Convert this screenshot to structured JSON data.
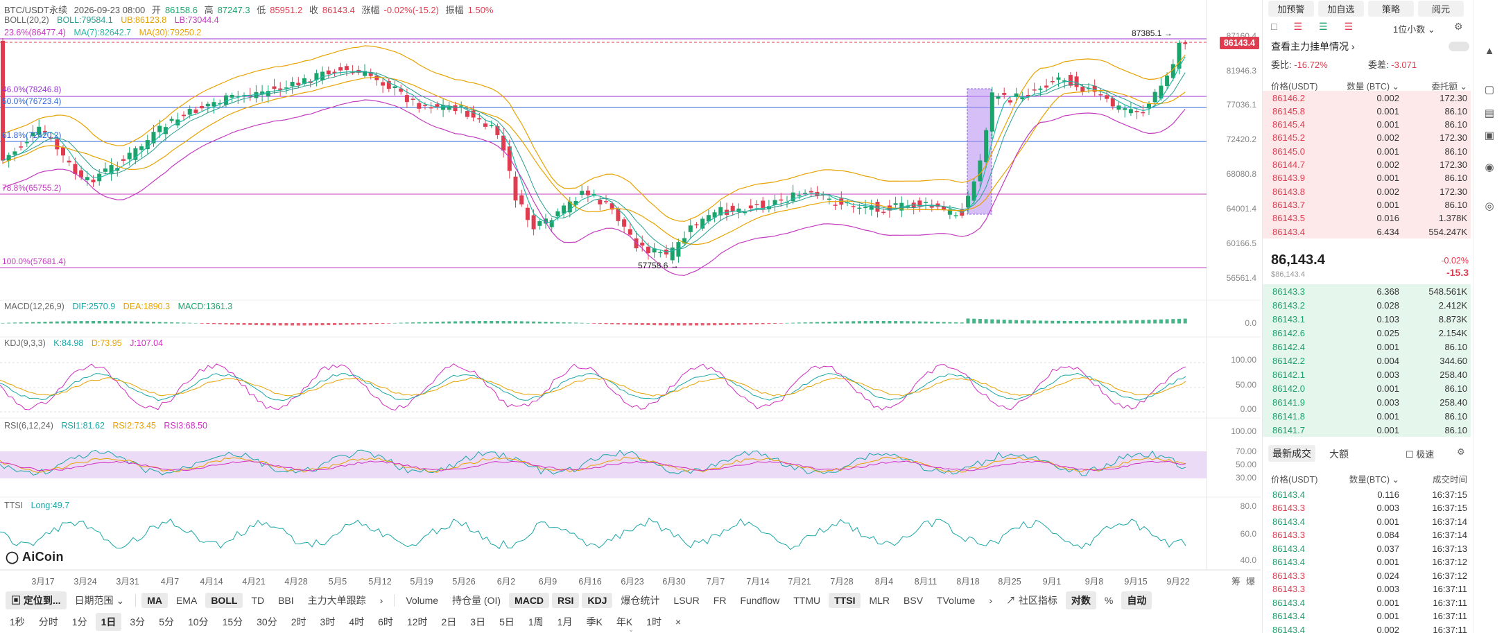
{
  "header": {
    "symbol": "BTC/USDT永续",
    "datetime": "2026-09-23 08:00",
    "open_label": "开",
    "open": "86158.6",
    "high_label": "高",
    "high": "87247.3",
    "low_label": "低",
    "low": "85951.2",
    "close_label": "收",
    "close": "86143.4",
    "change_label": "涨幅",
    "change": "-0.02%(-15.2)",
    "amp_label": "振幅",
    "amp": "1.50%"
  },
  "boll": {
    "name": "BOLL(20,2)",
    "boll": "BOLL:79584.1",
    "ub": "UB:86123.8",
    "lb": "LB:73044.4"
  },
  "ma": {
    "prefix": "23.6%(86477.4)",
    "ma7": "MA(7):82642.7",
    "ma30": "MA(30):79250.2"
  },
  "yaxis": [
    "87160.4",
    "81946.3",
    "77036.1",
    "72420.2",
    "68080.8",
    "64001.4",
    "60166.5",
    "56561.4"
  ],
  "last_price_tag": "86143.4",
  "high_marker": "87385.1 →",
  "low_marker": "57758.6 →",
  "fib": [
    {
      "label": "46.0%(78246.8)",
      "color": "#9b2fd6"
    },
    {
      "label": "50.0%(76723.4)",
      "color": "#2c66d8"
    },
    {
      "label": "61.8%(72420.2)",
      "color": "#2c66d8"
    },
    {
      "label": "78.8%(65755.2)",
      "color": "#c23bbf"
    },
    {
      "label": "100.0%(57681.4)",
      "color": "#c23bbf"
    }
  ],
  "macd": {
    "name": "MACD(12,26,9)",
    "dif": "DIF:2570.9",
    "dea": "DEA:1890.3",
    "macd": "MACD:1361.3",
    "axis": "0.0"
  },
  "kdj": {
    "name": "KDJ(9,3,3)",
    "k": "K:84.98",
    "d": "D:73.95",
    "j": "J:107.04",
    "axis": [
      "100.00",
      "50.00",
      "0.00"
    ]
  },
  "rsi": {
    "name": "RSI(6,12,24)",
    "rsi1": "RSI1:81.62",
    "rsi2": "RSI2:73.45",
    "rsi3": "RSI3:68.50",
    "axis": [
      "100.00",
      "70.00",
      "50.00",
      "30.00"
    ]
  },
  "ttsi": {
    "name": "TTSI",
    "long": "Long:49.7",
    "axis": [
      "80.0",
      "60.0",
      "40.0"
    ]
  },
  "logo": "AiCoin",
  "xaxis": [
    "3月17",
    "3月24",
    "3月31",
    "4月7",
    "4月14",
    "4月21",
    "4月28",
    "5月5",
    "5月12",
    "5月19",
    "5月26",
    "6月2",
    "6月9",
    "6月16",
    "6月23",
    "6月30",
    "7月7",
    "7月14",
    "7月21",
    "7月28",
    "8月4",
    "8月11",
    "8月18",
    "8月25",
    "9月1",
    "9月8",
    "9月15",
    "9月22"
  ],
  "xaxis_right": [
    "筹",
    "爆"
  ],
  "toolbar1": {
    "locate": "定位到...",
    "range": "日期范围",
    "indicators": [
      "MA",
      "EMA",
      "BOLL",
      "TD",
      "BBI",
      "主力大单跟踪"
    ],
    "sub_indicators": [
      "Volume",
      "持仓量 (OI)",
      "MACD",
      "RSI",
      "KDJ",
      "爆仓统计",
      "LSUR",
      "FR",
      "Fundflow",
      "TTMU",
      "TTSI",
      "MLR",
      "BSV",
      "TVolume"
    ],
    "community": "社区指标",
    "log": "对数",
    "pct": "%",
    "auto": "自动"
  },
  "toolbar2": [
    "1秒",
    "分时",
    "1分",
    "1日",
    "3分",
    "5分",
    "10分",
    "15分",
    "30分",
    "2时",
    "3时",
    "4时",
    "6时",
    "12时",
    "2日",
    "3日",
    "5日",
    "1周",
    "1月",
    "季K",
    "年K",
    "1时"
  ],
  "orderbook": {
    "buttons": [
      "加预警",
      "加自选",
      "策略",
      "阅元"
    ],
    "decimal": "1位小数",
    "main_orders": "查看主力挂单情况",
    "weibi_label": "委比:",
    "weibi": "-16.72%",
    "weicha_label": "委差:",
    "weicha": "-3.071",
    "headers": [
      "价格(USDT)",
      "数量 (BTC)",
      "委托额"
    ],
    "asks": [
      [
        "86146.2",
        "0.002",
        "172.30"
      ],
      [
        "86145.8",
        "0.001",
        "86.10"
      ],
      [
        "86145.4",
        "0.001",
        "86.10"
      ],
      [
        "86145.2",
        "0.002",
        "172.30"
      ],
      [
        "86145.0",
        "0.001",
        "86.10"
      ],
      [
        "86144.7",
        "0.002",
        "172.30"
      ],
      [
        "86143.9",
        "0.001",
        "86.10"
      ],
      [
        "86143.8",
        "0.002",
        "172.30"
      ],
      [
        "86143.7",
        "0.001",
        "86.10"
      ],
      [
        "86143.5",
        "0.016",
        "1.378K"
      ],
      [
        "86143.4",
        "6.434",
        "554.247K"
      ]
    ],
    "mid_price": "86,143.4",
    "mid_sub": "$86,143.4",
    "mid_pct": "-0.02%",
    "mid_chg": "-15.3",
    "bids": [
      [
        "86143.3",
        "6.368",
        "548.561K"
      ],
      [
        "86143.2",
        "0.028",
        "2.412K"
      ],
      [
        "86143.1",
        "0.103",
        "8.873K"
      ],
      [
        "86142.6",
        "0.025",
        "2.154K"
      ],
      [
        "86142.4",
        "0.001",
        "86.10"
      ],
      [
        "86142.2",
        "0.004",
        "344.60"
      ],
      [
        "86142.1",
        "0.003",
        "258.40"
      ],
      [
        "86142.0",
        "0.001",
        "86.10"
      ],
      [
        "86141.9",
        "0.003",
        "258.40"
      ],
      [
        "86141.8",
        "0.001",
        "86.10"
      ],
      [
        "86141.7",
        "0.001",
        "86.10"
      ]
    ],
    "trades_tab": "最新成交",
    "big_tab": "大额",
    "fast": "极速",
    "trade_headers": [
      "价格(USDT)",
      "数量(BTC)",
      "成交时间"
    ],
    "trades": [
      [
        "86143.4",
        "0.116",
        "16:37:15",
        "up"
      ],
      [
        "86143.3",
        "0.003",
        "16:37:15",
        "dn"
      ],
      [
        "86143.4",
        "0.001",
        "16:37:14",
        "up"
      ],
      [
        "86143.3",
        "0.084",
        "16:37:14",
        "dn"
      ],
      [
        "86143.4",
        "0.037",
        "16:37:13",
        "up"
      ],
      [
        "86143.4",
        "0.001",
        "16:37:12",
        "up"
      ],
      [
        "86143.3",
        "0.024",
        "16:37:12",
        "dn"
      ],
      [
        "86143.3",
        "0.003",
        "16:37:11",
        "dn"
      ],
      [
        "86143.4",
        "0.001",
        "16:37:11",
        "up"
      ],
      [
        "86143.4",
        "0.001",
        "16:37:11",
        "up"
      ],
      [
        "86143.4",
        "0.002",
        "16:37:11",
        "up"
      ]
    ]
  }
}
